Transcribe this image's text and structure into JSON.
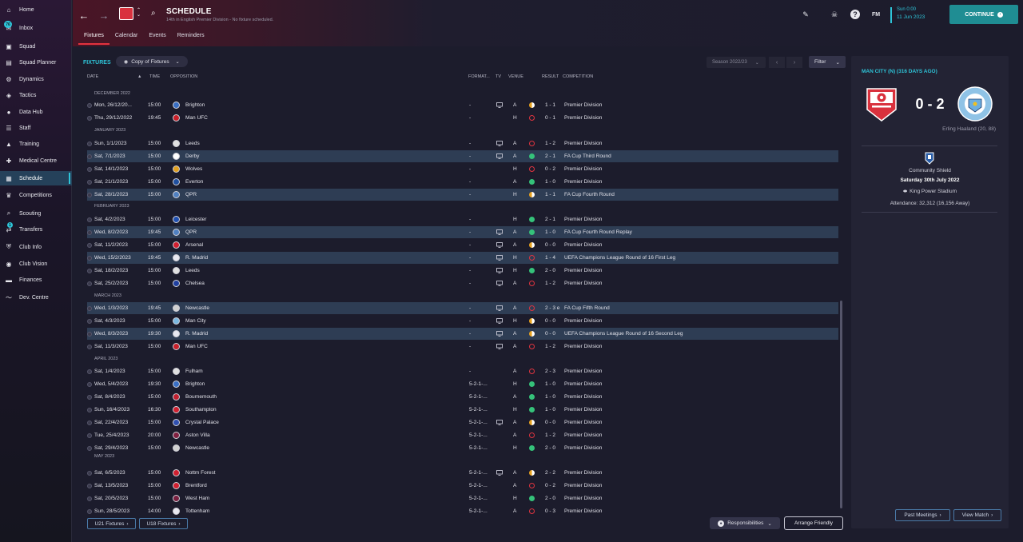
{
  "sidebar": {
    "items": [
      {
        "label": "Home",
        "icon": "home-icon",
        "glyph": "⌂"
      },
      {
        "label": "Inbox",
        "icon": "inbox-icon",
        "glyph": "✉",
        "badge": "76"
      },
      {
        "label": "Squad",
        "icon": "squad-icon",
        "glyph": "▣"
      },
      {
        "label": "Squad Planner",
        "icon": "squad-planner-icon",
        "glyph": "▤"
      },
      {
        "label": "Dynamics",
        "icon": "dynamics-icon",
        "glyph": "⚙"
      },
      {
        "label": "Tactics",
        "icon": "tactics-icon",
        "glyph": "◈"
      },
      {
        "label": "Data Hub",
        "icon": "data-hub-icon",
        "glyph": "●"
      },
      {
        "label": "Staff",
        "icon": "staff-icon",
        "glyph": "☰"
      },
      {
        "label": "Training",
        "icon": "training-icon",
        "glyph": "▲"
      },
      {
        "label": "Medical Centre",
        "icon": "medical-icon",
        "glyph": "✚"
      },
      {
        "label": "Schedule",
        "icon": "schedule-icon",
        "glyph": "▦",
        "active": true
      },
      {
        "label": "Competitions",
        "icon": "trophy-icon",
        "glyph": "♛"
      },
      {
        "label": "Scouting",
        "icon": "scouting-icon",
        "glyph": "⌕"
      },
      {
        "label": "Transfers",
        "icon": "transfers-icon",
        "glyph": "⇄",
        "badge": "1"
      },
      {
        "label": "Club Info",
        "icon": "club-info-icon",
        "glyph": "⛨"
      },
      {
        "label": "Club Vision",
        "icon": "club-vision-icon",
        "glyph": "◉"
      },
      {
        "label": "Finances",
        "icon": "finances-icon",
        "glyph": "▬"
      },
      {
        "label": "Dev. Centre",
        "icon": "dev-centre-icon",
        "glyph": "〜"
      }
    ]
  },
  "header": {
    "title": "SCHEDULE",
    "subtitle": "14th in English Premier Division - No fixture scheduled.",
    "tabs": [
      "Fixtures",
      "Calendar",
      "Events",
      "Reminders"
    ],
    "fm_label": "FM",
    "date_time": "Sun 0:00",
    "date_day": "11 Jun 2023",
    "continue_label": "CONTINUE"
  },
  "fixtures": {
    "title": "FIXTURES",
    "view_select": "Copy of Fixtures",
    "season_select": "Season 2022/23",
    "filter_label": "Filter",
    "columns": {
      "date": "DATE",
      "time": "TIME",
      "opposition": "OPPOSITION",
      "formation": "FORMAT...",
      "tv": "TV",
      "venue": "VENUE",
      "result": "RESULT",
      "competition": "COMPETITION"
    },
    "months": [
      "DECEMBER 2022",
      "JANUARY 2023",
      "FEBRUARY 2023",
      "MARCH 2023",
      "APRIL 2023",
      "MAY 2023"
    ],
    "rows": [
      {
        "date": "Mon, 26/12/20...",
        "time": "15:00",
        "opp": "Brighton",
        "form": "-",
        "tv": true,
        "venue": "A",
        "res": "draw",
        "score": "1 - 1",
        "comp": "Premier Division",
        "hl": false,
        "crest": "#3a6fc4"
      },
      {
        "date": "Thu, 29/12/2022",
        "time": "19:45",
        "opp": "Man UFC",
        "form": "-",
        "tv": false,
        "venue": "H",
        "res": "loss",
        "score": "0 - 1",
        "comp": "Premier Division",
        "hl": false,
        "crest": "#c8202a"
      },
      {
        "date": "Sun, 1/1/2023",
        "time": "15:00",
        "opp": "Leeds",
        "form": "-",
        "tv": true,
        "venue": "A",
        "res": "loss",
        "score": "1 - 2",
        "comp": "Premier Division",
        "hl": false,
        "crest": "#e0e0e0"
      },
      {
        "date": "Sat, 7/1/2023",
        "time": "15:00",
        "opp": "Derby",
        "form": "-",
        "tv": true,
        "venue": "A",
        "res": "win",
        "score": "2 - 1",
        "comp": "FA Cup Third Round",
        "hl": true,
        "crest": "#ffffff"
      },
      {
        "date": "Sat, 14/1/2023",
        "time": "15:00",
        "opp": "Wolves",
        "form": "-",
        "tv": false,
        "venue": "H",
        "res": "loss",
        "score": "0 - 2",
        "comp": "Premier Division",
        "hl": false,
        "crest": "#e0a020"
      },
      {
        "date": "Sat, 21/1/2023",
        "time": "15:00",
        "opp": "Everton",
        "form": "-",
        "tv": false,
        "venue": "A",
        "res": "win",
        "score": "1 - 0",
        "comp": "Premier Division",
        "hl": false,
        "crest": "#2050a0"
      },
      {
        "date": "Sat, 28/1/2023",
        "time": "15:00",
        "opp": "QPR",
        "form": "-",
        "tv": false,
        "venue": "H",
        "res": "draw",
        "score": "1 - 1",
        "comp": "FA Cup Fourth Round",
        "hl": true,
        "crest": "#5080c0"
      },
      {
        "date": "Sat, 4/2/2023",
        "time": "15:00",
        "opp": "Leicester",
        "form": "-",
        "tv": false,
        "venue": "H",
        "res": "win",
        "score": "2 - 1",
        "comp": "Premier Division",
        "hl": false,
        "crest": "#2050b0"
      },
      {
        "date": "Wed, 8/2/2023",
        "time": "19:45",
        "opp": "QPR",
        "form": "-",
        "tv": true,
        "venue": "A",
        "res": "win",
        "score": "1 - 0",
        "comp": "FA Cup Fourth Round Replay",
        "hl": true,
        "crest": "#5080c0"
      },
      {
        "date": "Sat, 11/2/2023",
        "time": "15:00",
        "opp": "Arsenal",
        "form": "-",
        "tv": true,
        "venue": "A",
        "res": "draw",
        "score": "0 - 0",
        "comp": "Premier Division",
        "hl": false,
        "crest": "#d02030"
      },
      {
        "date": "Wed, 15/2/2023",
        "time": "19:45",
        "opp": "R. Madrid",
        "form": "-",
        "tv": true,
        "venue": "H",
        "res": "loss",
        "score": "1 - 4",
        "comp": "UEFA Champions League Round of 16  First Leg",
        "hl": true,
        "crest": "#e8e8f0"
      },
      {
        "date": "Sat, 18/2/2023",
        "time": "15:00",
        "opp": "Leeds",
        "form": "-",
        "tv": true,
        "venue": "H",
        "res": "win",
        "score": "2 - 0",
        "comp": "Premier Division",
        "hl": false,
        "crest": "#e0e0e0"
      },
      {
        "date": "Sat, 25/2/2023",
        "time": "15:00",
        "opp": "Chelsea",
        "form": "-",
        "tv": true,
        "venue": "A",
        "res": "loss",
        "score": "1 - 2",
        "comp": "Premier Division",
        "hl": false,
        "crest": "#2040a0"
      },
      {
        "date": "Wed, 1/3/2023",
        "time": "19:45",
        "opp": "Newcastle",
        "form": "-",
        "tv": true,
        "venue": "A",
        "res": "loss",
        "score": "2 - 3 e",
        "comp": "FA Cup Fifth Round",
        "hl": true,
        "crest": "#d0d0d0"
      },
      {
        "date": "Sat, 4/3/2023",
        "time": "15:00",
        "opp": "Man City",
        "form": "-",
        "tv": true,
        "venue": "H",
        "res": "draw",
        "score": "0 - 0",
        "comp": "Premier Division",
        "hl": false,
        "crest": "#7ab8e0"
      },
      {
        "date": "Wed, 8/3/2023",
        "time": "19:30",
        "opp": "R. Madrid",
        "form": "-",
        "tv": true,
        "venue": "A",
        "res": "draw",
        "score": "0 - 0",
        "comp": "UEFA Champions League Round of 16  Second Leg",
        "hl": true,
        "crest": "#e8e8f0"
      },
      {
        "date": "Sat, 11/3/2023",
        "time": "15:00",
        "opp": "Man UFC",
        "form": "-",
        "tv": true,
        "venue": "A",
        "res": "loss",
        "score": "1 - 2",
        "comp": "Premier Division",
        "hl": false,
        "crest": "#c8202a"
      },
      {
        "date": "Sat, 1/4/2023",
        "time": "15:00",
        "opp": "Fulham",
        "form": "-",
        "tv": false,
        "venue": "A",
        "res": "loss",
        "score": "2 - 3",
        "comp": "Premier Division",
        "hl": false,
        "crest": "#e0e0e0"
      },
      {
        "date": "Wed, 5/4/2023",
        "time": "19:30",
        "opp": "Brighton",
        "form": "5-2-1-...",
        "tv": false,
        "venue": "H",
        "res": "win",
        "score": "1 - 0",
        "comp": "Premier Division",
        "hl": false,
        "crest": "#3a6fc4"
      },
      {
        "date": "Sat, 8/4/2023",
        "time": "15:00",
        "opp": "Bournemouth",
        "form": "5-2-1-...",
        "tv": false,
        "venue": "A",
        "res": "win",
        "score": "1 - 0",
        "comp": "Premier Division",
        "hl": false,
        "crest": "#c02030"
      },
      {
        "date": "Sun, 16/4/2023",
        "time": "16:30",
        "opp": "Southampton",
        "form": "5-2-1-...",
        "tv": false,
        "venue": "H",
        "res": "win",
        "score": "1 - 0",
        "comp": "Premier Division",
        "hl": false,
        "crest": "#d02030"
      },
      {
        "date": "Sat, 22/4/2023",
        "time": "15:00",
        "opp": "Crystal Palace",
        "form": "5-2-1-...",
        "tv": true,
        "venue": "A",
        "res": "draw",
        "score": "0 - 0",
        "comp": "Premier Division",
        "hl": false,
        "crest": "#3050b0"
      },
      {
        "date": "Tue, 25/4/2023",
        "time": "20:00",
        "opp": "Aston Villa",
        "form": "5-2-1-...",
        "tv": false,
        "venue": "A",
        "res": "loss",
        "score": "1 - 2",
        "comp": "Premier Division",
        "hl": false,
        "crest": "#802040"
      },
      {
        "date": "Sat, 29/4/2023",
        "time": "15:00",
        "opp": "Newcastle",
        "form": "5-2-1-...",
        "tv": false,
        "venue": "H",
        "res": "win",
        "score": "2 - 0",
        "comp": "Premier Division",
        "hl": false,
        "crest": "#d0d0d0"
      },
      {
        "date": "Sat, 6/5/2023",
        "time": "15:00",
        "opp": "Nottm Forest",
        "form": "5-2-1-...",
        "tv": true,
        "venue": "A",
        "res": "draw",
        "score": "2 - 2",
        "comp": "Premier Division",
        "hl": false,
        "crest": "#d02030"
      },
      {
        "date": "Sat, 13/5/2023",
        "time": "15:00",
        "opp": "Brentford",
        "form": "5-2-1-...",
        "tv": false,
        "venue": "A",
        "res": "loss",
        "score": "0 - 2",
        "comp": "Premier Division",
        "hl": false,
        "crest": "#d02030"
      },
      {
        "date": "Sat, 20/5/2023",
        "time": "15:00",
        "opp": "West Ham",
        "form": "5-2-1-...",
        "tv": false,
        "venue": "H",
        "res": "win",
        "score": "2 - 0",
        "comp": "Premier Division",
        "hl": false,
        "crest": "#7a2040"
      },
      {
        "date": "Sun, 28/5/2023",
        "time": "14:00",
        "opp": "Tottenham",
        "form": "5-2-1-...",
        "tv": false,
        "venue": "A",
        "res": "loss",
        "score": "0 - 3",
        "comp": "Premier Division",
        "hl": false,
        "crest": "#e8e8f0"
      }
    ],
    "result_colors": {
      "win": "#35c27a",
      "draw": "#e8a21e",
      "loss": "#e0343f"
    },
    "u21_label": "U21 Fixtures",
    "u18_label": "U18 Fixtures",
    "responsibilities_label": "Responsibilities",
    "arrange_label": "Arrange Friendly"
  },
  "match_panel": {
    "title": "MAN CITY (N) (316 DAYS AGO)",
    "score": "0 - 2",
    "scorer": "Erling Haaland (20, 88)",
    "competition": "Community Shield",
    "date": "Saturday 30th July 2022",
    "stadium": "King Power Stadium",
    "attendance": "Attendance: 32,312 (16,156 Away)",
    "away_crest_text": "MANCHESTER CITY",
    "past_meetings_label": "Past Meetings",
    "view_match_label": "View Match"
  },
  "colors": {
    "accent": "#2ec4d8",
    "continue": "#1f8d93",
    "club_red": "#d9313d",
    "highlight_row": "#2e3d54"
  }
}
